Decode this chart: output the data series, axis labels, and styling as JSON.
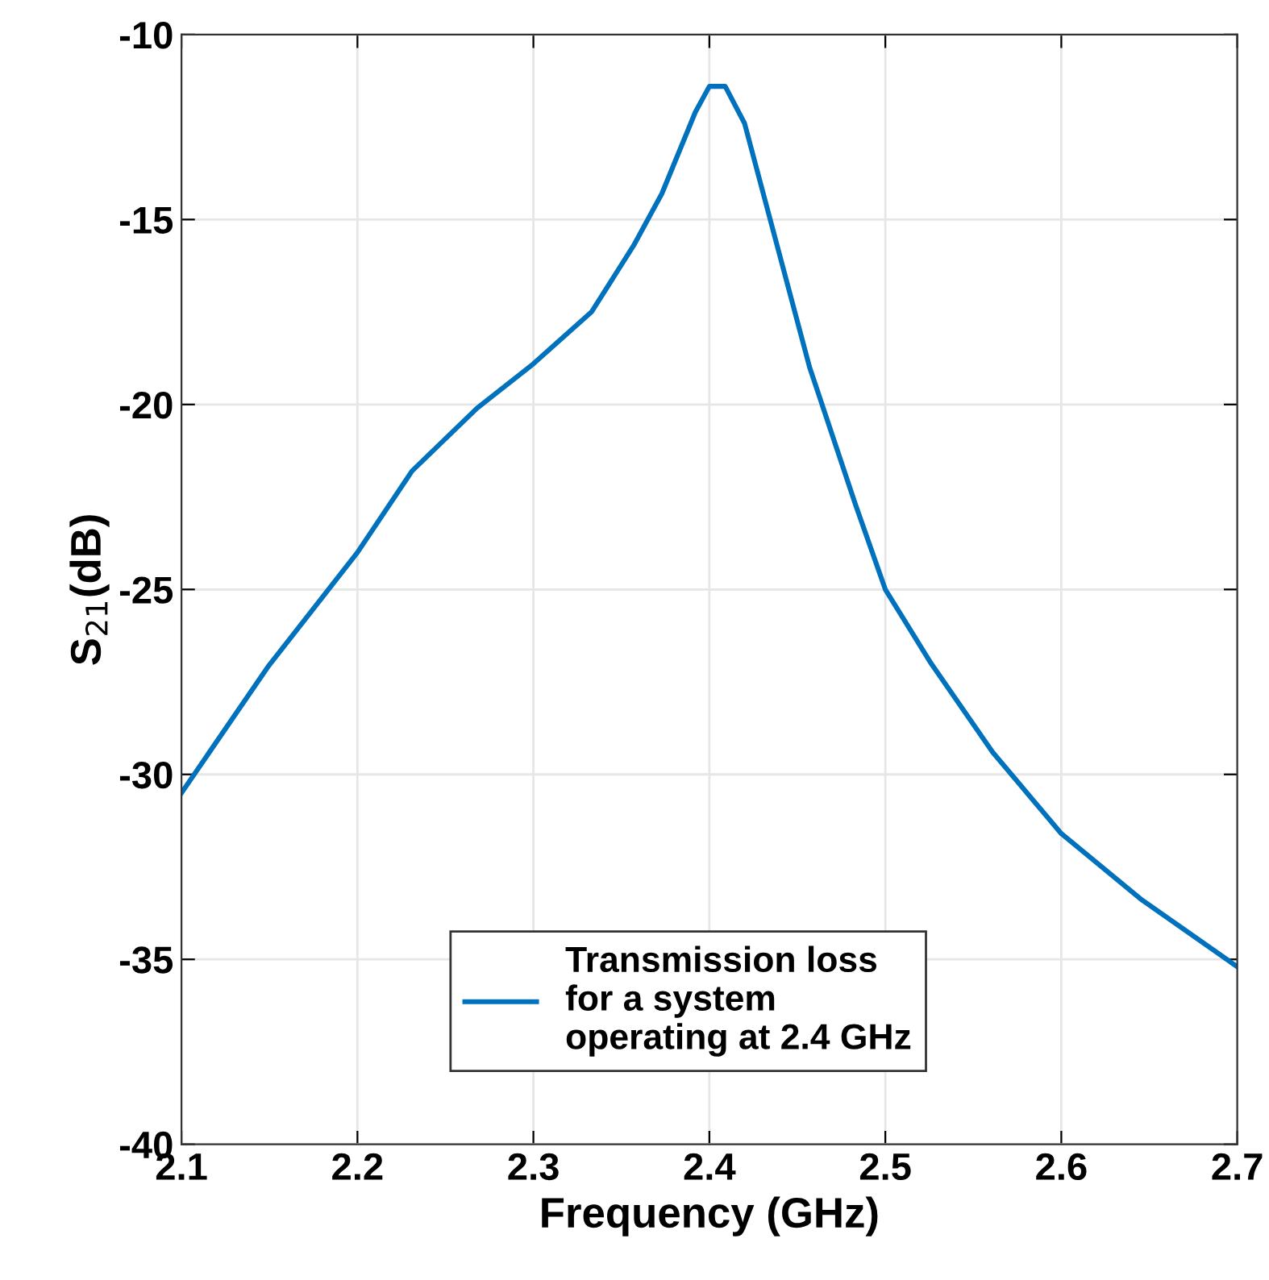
{
  "chart_data": {
    "type": "line",
    "xlabel": "Frequency (GHz)",
    "ylabel": "S$_{21}$(dB)",
    "x": [
      2.1,
      2.149,
      2.2,
      2.231,
      2.268,
      2.3,
      2.333,
      2.357,
      2.373,
      2.392,
      2.4,
      2.409,
      2.42,
      2.434,
      2.457,
      2.483,
      2.5,
      2.526,
      2.561,
      2.6,
      2.646,
      2.7
    ],
    "series": [
      {
        "name": "Transmission loss\nfor a system\noperating at 2.4 GHz",
        "color": "#0072bd",
        "values": [
          -30.5,
          -27.1,
          -24.0,
          -21.8,
          -20.1,
          -18.9,
          -17.5,
          -15.7,
          -14.3,
          -12.1,
          -11.4,
          -11.4,
          -12.4,
          -14.9,
          -19.0,
          -22.7,
          -25.0,
          -27.0,
          -29.4,
          -31.6,
          -33.4,
          -35.2
        ]
      }
    ],
    "xlim": [
      2.1,
      2.7
    ],
    "xticks": [
      2.1,
      2.2,
      2.3,
      2.4,
      2.5,
      2.6,
      2.7
    ],
    "ylim": [
      -40,
      -10
    ],
    "yticks": [
      -40,
      -35,
      -30,
      -25,
      -20,
      -15,
      -10
    ],
    "grid": true,
    "legend": "bottom",
    "marker": "none",
    "line_style": "solid"
  }
}
